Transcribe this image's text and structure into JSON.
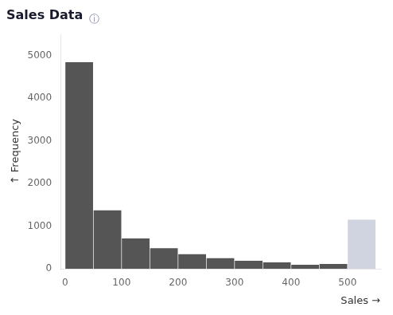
{
  "chart_data": {
    "type": "histogram",
    "title": "Sales Data",
    "annotations": [
      "ⓘ"
    ],
    "xlabel": "Sales →",
    "ylabel": "↑ Frequency",
    "bins": [
      0,
      50,
      100,
      150,
      200,
      250,
      300,
      350,
      400,
      450,
      500,
      550
    ],
    "values": [
      4850,
      1370,
      710,
      480,
      340,
      250,
      185,
      150,
      95,
      110,
      1150
    ],
    "colors": [
      "#555555",
      "#555555",
      "#555555",
      "#555555",
      "#555555",
      "#555555",
      "#555555",
      "#555555",
      "#555555",
      "#555555",
      "#d0d4e0"
    ],
    "xlim": [
      -8,
      558
    ],
    "xticks": [
      0,
      100,
      200,
      300,
      400,
      500
    ],
    "ylim": [
      0,
      5500
    ],
    "yticks": [
      0,
      1000,
      2000,
      3000,
      4000,
      5000
    ],
    "grid": false
  }
}
